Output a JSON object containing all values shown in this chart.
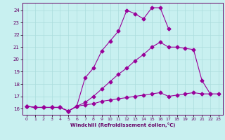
{
  "xlabel": "Windchill (Refroidissement éolien,°C)",
  "bg_color": "#c8f0f0",
  "line_color": "#990099",
  "grid_color": "#aadddd",
  "xlim": [
    -0.5,
    23.5
  ],
  "ylim": [
    15.5,
    24.6
  ],
  "yticks": [
    16,
    17,
    18,
    19,
    20,
    21,
    22,
    23,
    24
  ],
  "xticks": [
    0,
    1,
    2,
    3,
    4,
    5,
    6,
    7,
    8,
    9,
    10,
    11,
    12,
    13,
    14,
    15,
    16,
    17,
    18,
    19,
    20,
    21,
    22,
    23
  ],
  "line1_x": [
    0,
    1,
    2,
    3,
    4,
    5,
    6,
    7,
    8,
    9,
    10,
    11,
    12,
    13,
    14,
    15,
    16,
    17
  ],
  "line1_y": [
    16.2,
    16.1,
    16.1,
    16.1,
    16.1,
    15.8,
    16.2,
    18.5,
    19.3,
    20.7,
    21.5,
    22.3,
    24.0,
    23.7,
    23.3,
    24.2,
    24.2,
    22.5
  ],
  "line2_x": [
    0,
    1,
    2,
    3,
    4,
    5,
    6,
    7,
    8,
    9,
    10,
    11,
    12,
    13,
    14,
    15,
    16,
    17,
    18,
    19,
    20,
    21,
    22
  ],
  "line2_y": [
    16.2,
    16.1,
    16.1,
    16.1,
    16.1,
    15.8,
    16.2,
    16.5,
    17.0,
    17.6,
    18.2,
    18.8,
    19.3,
    19.9,
    20.4,
    21.0,
    21.4,
    21.0,
    21.0,
    20.9,
    20.8,
    18.3,
    17.2
  ],
  "line3_x": [
    0,
    1,
    2,
    3,
    4,
    5,
    6,
    7,
    8,
    9,
    10,
    11,
    12,
    13,
    14,
    15,
    16,
    17,
    18,
    19,
    20,
    21,
    22,
    23
  ],
  "line3_y": [
    16.2,
    16.1,
    16.1,
    16.1,
    16.1,
    15.8,
    16.2,
    16.3,
    16.4,
    16.6,
    16.7,
    16.8,
    16.9,
    17.0,
    17.1,
    17.2,
    17.3,
    17.0,
    17.1,
    17.2,
    17.3,
    17.2,
    17.2,
    17.2
  ]
}
